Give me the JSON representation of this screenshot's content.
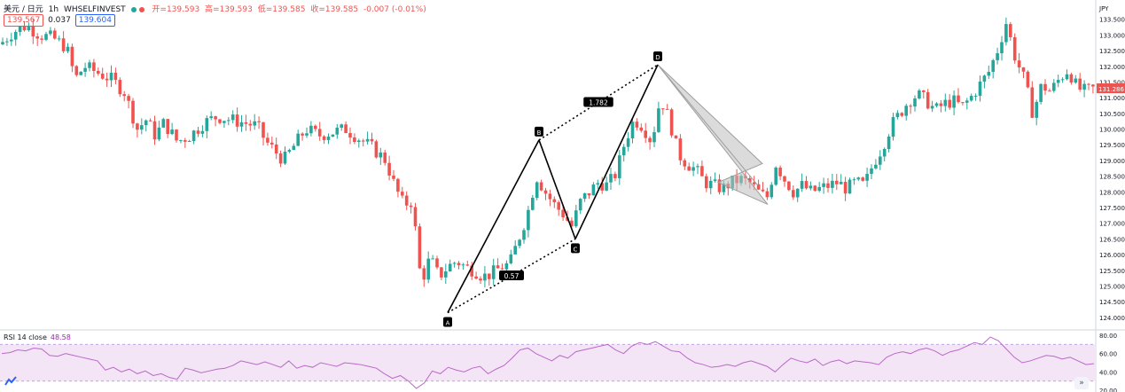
{
  "header": {
    "symbol": "美元 / 日元",
    "interval": "1h",
    "source": "WHSELFINVEST",
    "open": "开=139.593",
    "high": "高=139.593",
    "low": "低=139.585",
    "close": "收=139.585",
    "change": "-0.007 (-0.01%)",
    "bid": "139.567",
    "spread": "0.037",
    "ask": "139.604",
    "currency": "JPY"
  },
  "rsi": {
    "label": "RSI 14 close",
    "value": "48.58"
  },
  "price_tag": "131.286",
  "colors": {
    "up": "#26a69a",
    "down": "#ef5350",
    "rsi_line": "#ba68c8",
    "rsi_band": "#f3e5f5",
    "pattern_line": "#000000",
    "projection": "#9e9e9e"
  },
  "chart_data": [
    {
      "type": "candlestick",
      "ylim": [
        123.6,
        134.0
      ],
      "y_ticks": [
        "124.000",
        "124.500",
        "125.000",
        "125.500",
        "126.000",
        "126.500",
        "127.000",
        "127.500",
        "128.000",
        "128.500",
        "129.000",
        "129.500",
        "130.000",
        "130.500",
        "131.000",
        "131.500",
        "132.000",
        "132.500",
        "133.000",
        "133.500"
      ],
      "y_tick_values": [
        124.0,
        124.5,
        125.0,
        125.5,
        126.0,
        126.5,
        127.0,
        127.5,
        128.0,
        128.5,
        129.0,
        129.5,
        130.0,
        130.5,
        131.0,
        131.5,
        132.0,
        132.5,
        133.0,
        133.5
      ],
      "close_path": [
        [
          0,
          132.7
        ],
        [
          15,
          133.1
        ],
        [
          30,
          133.3
        ],
        [
          45,
          133.0
        ],
        [
          60,
          132.9
        ],
        [
          75,
          132.6
        ],
        [
          85,
          131.6
        ],
        [
          95,
          132.0
        ],
        [
          110,
          131.8
        ],
        [
          125,
          131.6
        ],
        [
          140,
          131.2
        ],
        [
          155,
          130.0
        ],
        [
          165,
          130.3
        ],
        [
          175,
          129.8
        ],
        [
          185,
          130.2
        ],
        [
          200,
          129.6
        ],
        [
          215,
          129.8
        ],
        [
          230,
          130.2
        ],
        [
          245,
          130.4
        ],
        [
          260,
          130.3
        ],
        [
          275,
          130.2
        ],
        [
          290,
          130.1
        ],
        [
          300,
          129.6
        ],
        [
          310,
          129.3
        ],
        [
          320,
          129.0
        ],
        [
          330,
          129.4
        ],
        [
          345,
          130.0
        ],
        [
          360,
          129.8
        ],
        [
          375,
          129.9
        ],
        [
          390,
          130.0
        ],
        [
          405,
          129.7
        ],
        [
          420,
          129.4
        ],
        [
          435,
          129.0
        ],
        [
          445,
          128.2
        ],
        [
          455,
          127.6
        ],
        [
          465,
          127.7
        ],
        [
          475,
          125.1
        ],
        [
          485,
          125.9
        ],
        [
          495,
          125.3
        ],
        [
          505,
          125.6
        ],
        [
          515,
          125.8
        ],
        [
          525,
          125.6
        ],
        [
          535,
          125.5
        ],
        [
          545,
          125.3
        ],
        [
          555,
          125.4
        ],
        [
          565,
          125.6
        ],
        [
          575,
          125.7
        ],
        [
          585,
          126.5
        ],
        [
          595,
          127.3
        ],
        [
          605,
          128.5
        ],
        [
          615,
          128.0
        ],
        [
          625,
          127.6
        ],
        [
          635,
          127.3
        ],
        [
          645,
          126.9
        ],
        [
          655,
          127.7
        ],
        [
          665,
          128.0
        ],
        [
          675,
          128.3
        ],
        [
          685,
          128.2
        ],
        [
          695,
          128.6
        ],
        [
          705,
          129.6
        ],
        [
          715,
          130.3
        ],
        [
          725,
          130.1
        ],
        [
          735,
          129.6
        ],
        [
          745,
          131.0
        ],
        [
          755,
          130.3
        ],
        [
          765,
          129.2
        ],
        [
          775,
          128.9
        ],
        [
          785,
          128.7
        ],
        [
          795,
          128.3
        ],
        [
          805,
          128.2
        ],
        [
          815,
          128.1
        ],
        [
          825,
          128.3
        ],
        [
          835,
          128.4
        ],
        [
          845,
          128.3
        ],
        [
          855,
          128.0
        ],
        [
          865,
          127.8
        ],
        [
          875,
          128.9
        ],
        [
          885,
          128.4
        ],
        [
          895,
          128.0
        ],
        [
          905,
          128.2
        ],
        [
          915,
          128.0
        ],
        [
          925,
          128.1
        ],
        [
          935,
          128.2
        ],
        [
          945,
          128.3
        ],
        [
          955,
          128.1
        ],
        [
          965,
          128.3
        ],
        [
          975,
          128.2
        ],
        [
          985,
          128.9
        ],
        [
          995,
          129.4
        ],
        [
          1005,
          130.1
        ],
        [
          1015,
          130.5
        ],
        [
          1025,
          130.9
        ],
        [
          1035,
          131.1
        ],
        [
          1045,
          130.9
        ],
        [
          1055,
          130.6
        ],
        [
          1065,
          130.8
        ],
        [
          1075,
          130.9
        ],
        [
          1085,
          130.7
        ],
        [
          1095,
          131.0
        ],
        [
          1105,
          131.4
        ],
        [
          1115,
          131.8
        ],
        [
          1125,
          132.5
        ],
        [
          1135,
          133.4
        ],
        [
          1145,
          132.3
        ],
        [
          1155,
          131.6
        ],
        [
          1165,
          130.5
        ],
        [
          1175,
          131.4
        ],
        [
          1185,
          131.2
        ],
        [
          1195,
          131.6
        ],
        [
          1205,
          131.9
        ],
        [
          1215,
          131.3
        ],
        [
          1225,
          131.2
        ],
        [
          1233,
          131.28
        ]
      ],
      "pattern": {
        "points": [
          {
            "label": "A",
            "x": 505,
            "y": 124.15
          },
          {
            "label": "B",
            "x": 608,
            "y": 129.65
          },
          {
            "label": "C",
            "x": 649,
            "y": 126.5
          },
          {
            "label": "D",
            "x": 742,
            "y": 132.05
          }
        ],
        "ratios": [
          {
            "label": "0.57",
            "between": [
              "A",
              "C"
            ]
          },
          {
            "label": "1.782",
            "between": [
              "B",
              "D"
            ]
          }
        ]
      }
    },
    {
      "type": "line",
      "name": "RSI 14 close",
      "ylim": [
        20,
        80
      ],
      "y_ticks": [
        "80.00",
        "60.00",
        "40.00",
        "20.00"
      ],
      "y_tick_values": [
        80,
        60,
        40,
        20
      ],
      "band": [
        30,
        70
      ],
      "values": [
        60,
        61,
        64,
        63,
        66,
        65,
        58,
        57,
        60,
        58,
        56,
        54,
        52,
        42,
        45,
        40,
        43,
        38,
        41,
        36,
        38,
        34,
        32,
        44,
        42,
        39,
        41,
        43,
        44,
        47,
        52,
        50,
        48,
        51,
        48,
        45,
        52,
        44,
        47,
        45,
        50,
        48,
        46,
        50,
        49,
        48,
        46,
        44,
        38,
        33,
        36,
        30,
        22,
        28,
        41,
        38,
        45,
        42,
        40,
        44,
        46,
        38,
        43,
        47,
        55,
        64,
        66,
        60,
        56,
        52,
        58,
        55,
        62,
        64,
        66,
        68,
        70,
        64,
        60,
        68,
        72,
        70,
        73,
        68,
        63,
        62,
        55,
        50,
        48,
        45,
        46,
        48,
        46,
        50,
        52,
        49,
        46,
        40,
        48,
        55,
        52,
        50,
        54,
        47,
        51,
        53,
        49,
        52,
        51,
        50,
        48,
        56,
        60,
        62,
        60,
        64,
        66,
        63,
        58,
        62,
        64,
        68,
        72,
        70,
        78,
        74,
        65,
        56,
        50,
        52,
        55,
        58,
        57,
        54,
        56,
        52,
        48,
        49
      ]
    }
  ]
}
